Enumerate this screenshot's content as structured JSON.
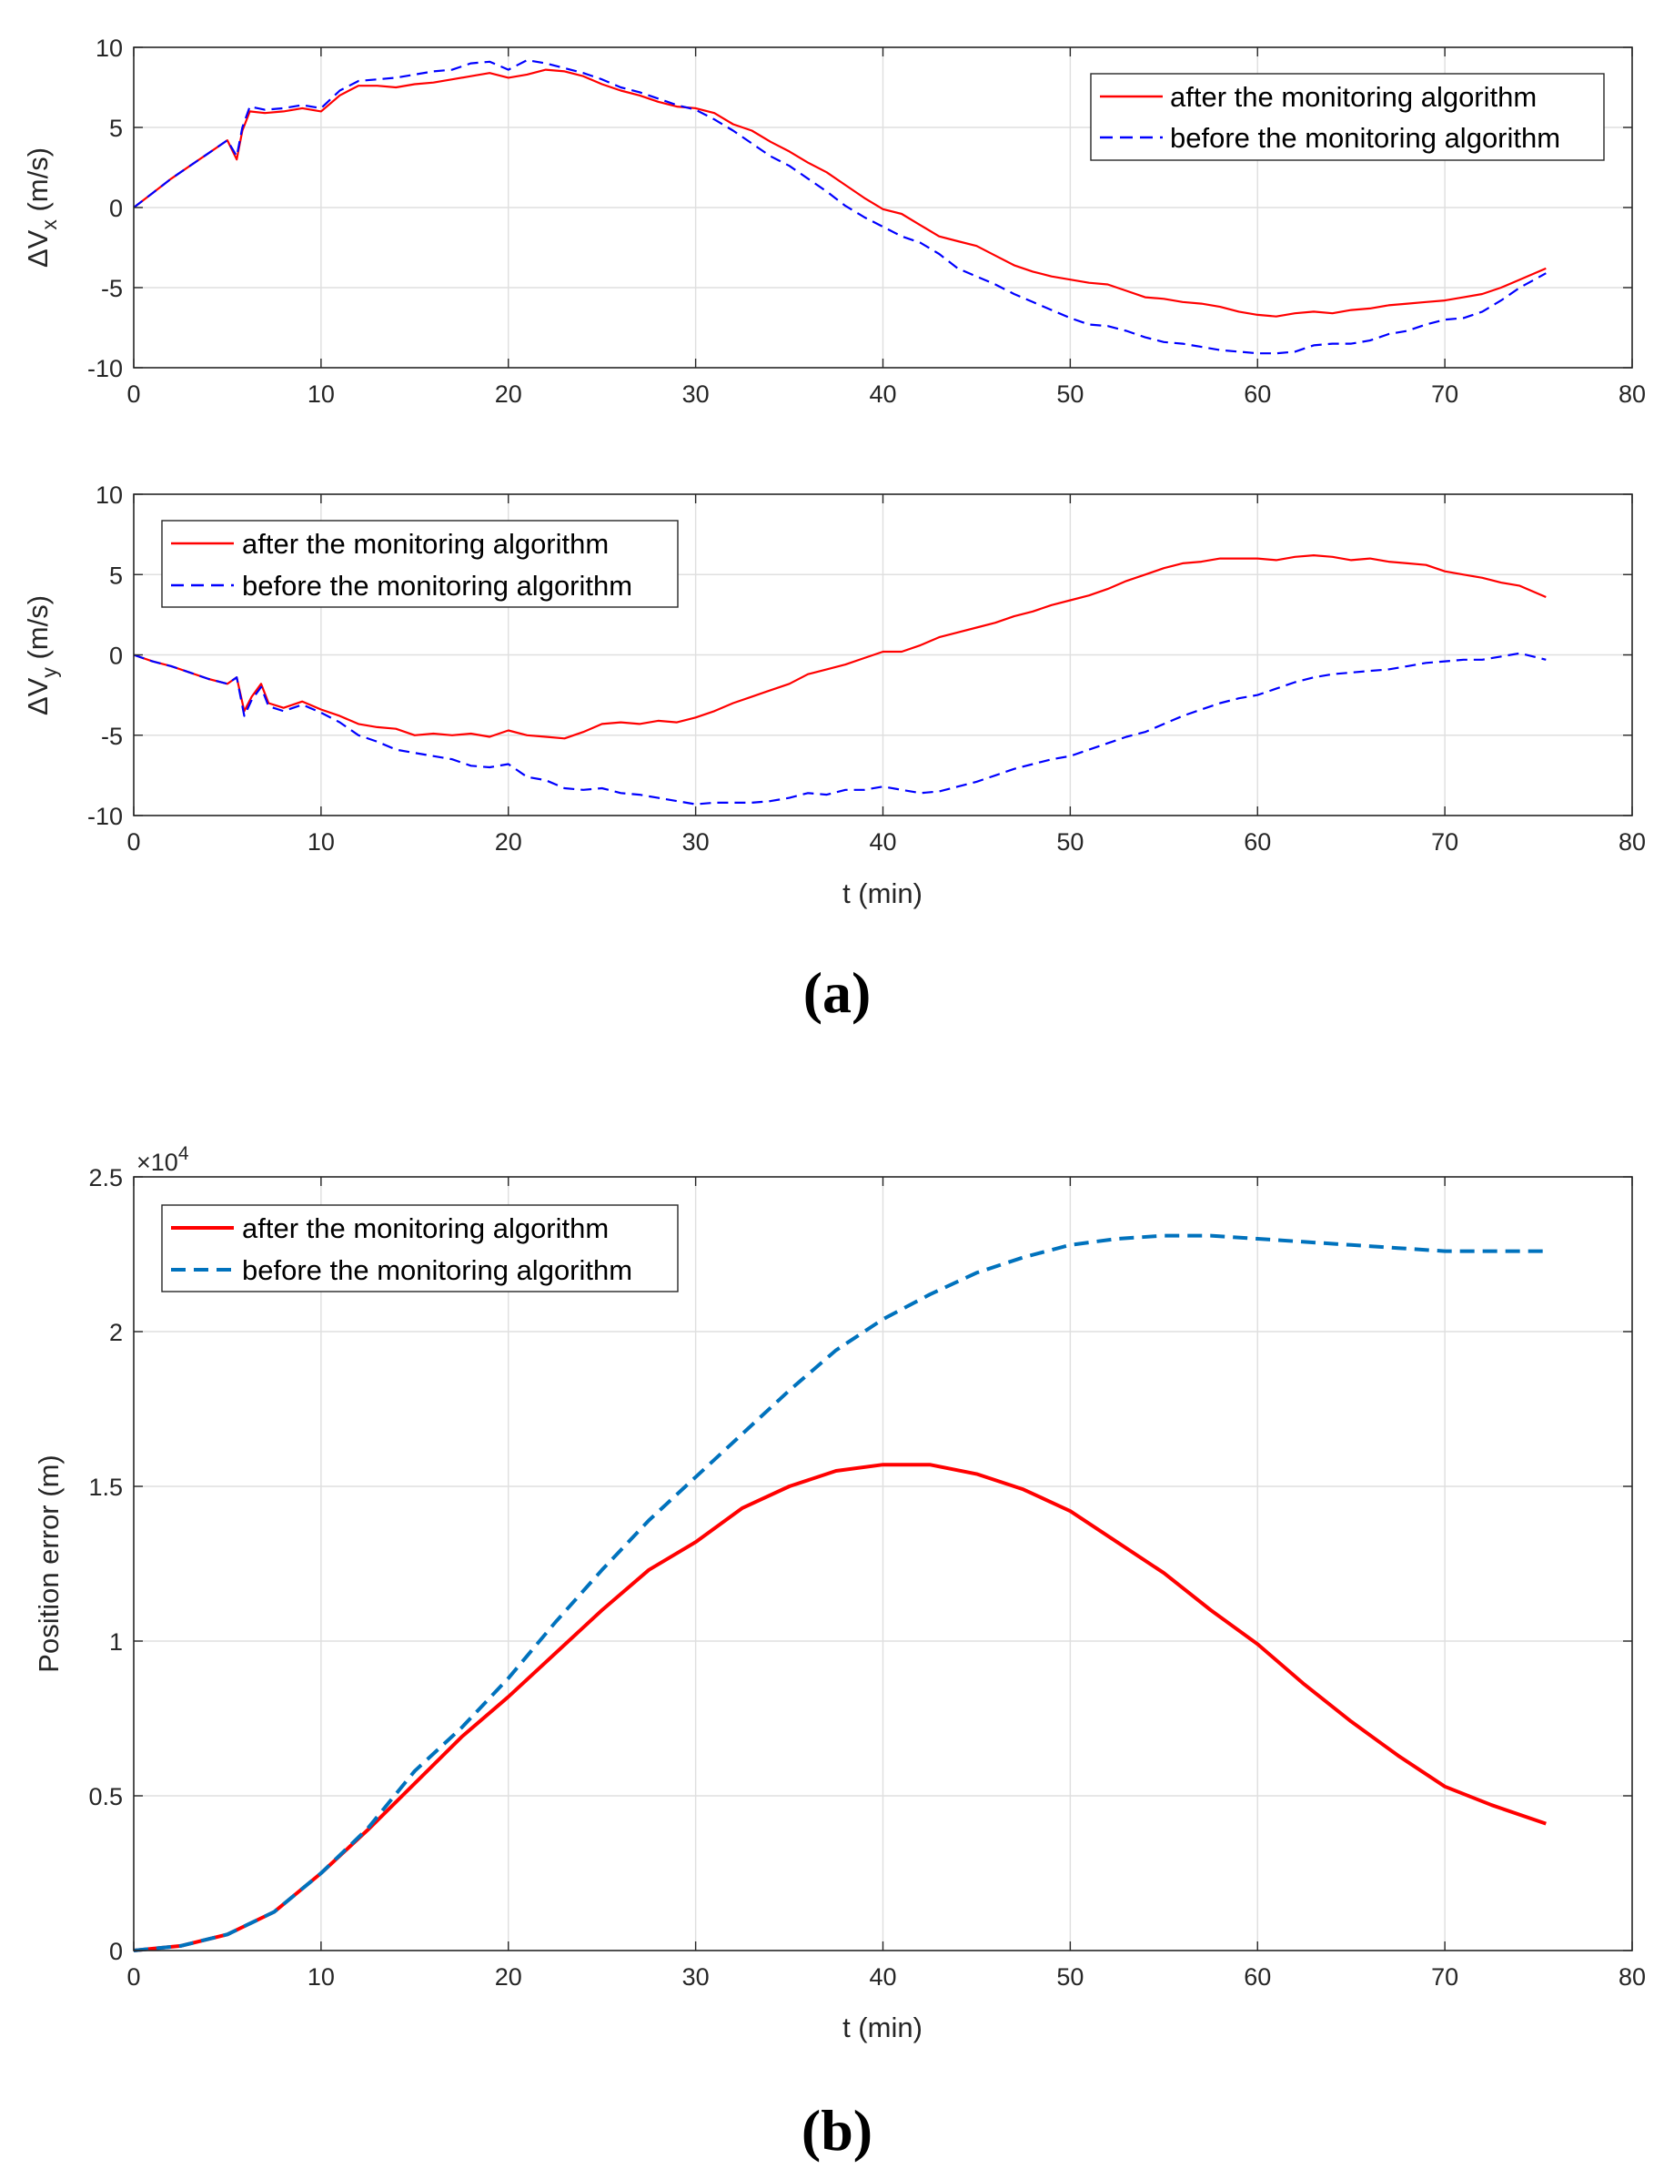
{
  "chart_data": [
    {
      "type": "line",
      "xlabel": "",
      "ylabel": "ΔV",
      "ylabel_subscript": "x",
      "ylabel_unit": " (m/s)",
      "xlim": [
        0,
        80
      ],
      "ylim": [
        -10,
        10
      ],
      "xticks": [
        "0",
        "10",
        "20",
        "30",
        "40",
        "50",
        "60",
        "70",
        "80"
      ],
      "yticks": [
        "-10",
        "-5",
        "0",
        "5",
        "10"
      ],
      "grid": true,
      "legend_position": "top-right",
      "series": [
        {
          "name": "after the monitoring algorithm",
          "color": "#ff0000",
          "style": "solid",
          "x": [
            0,
            1,
            2,
            3,
            4,
            5,
            5.5,
            5.8,
            6.2,
            7,
            8,
            9,
            10,
            11,
            12,
            13,
            14,
            15,
            16,
            17,
            18,
            19,
            20,
            21,
            22,
            23,
            24,
            25,
            26,
            27,
            28,
            29,
            30,
            31,
            32,
            33,
            34,
            35,
            36,
            37,
            38,
            39,
            40,
            41,
            42,
            43,
            44,
            45,
            46,
            47,
            48,
            49,
            50,
            51,
            52,
            53,
            54,
            55,
            56,
            57,
            58,
            59,
            60,
            61,
            62,
            63,
            64,
            65,
            66,
            67,
            68,
            69,
            70,
            71,
            72,
            73,
            74,
            75.4
          ],
          "y": [
            0,
            0.9,
            1.8,
            2.6,
            3.4,
            4.2,
            3.0,
            4.8,
            6.0,
            5.9,
            6.0,
            6.2,
            6.0,
            7.0,
            7.6,
            7.6,
            7.5,
            7.7,
            7.8,
            8.0,
            8.2,
            8.4,
            8.1,
            8.3,
            8.6,
            8.5,
            8.2,
            7.7,
            7.3,
            7.0,
            6.6,
            6.3,
            6.2,
            5.9,
            5.2,
            4.8,
            4.1,
            3.5,
            2.8,
            2.2,
            1.4,
            0.6,
            -0.1,
            -0.4,
            -1.1,
            -1.8,
            -2.1,
            -2.4,
            -3.0,
            -3.6,
            -4.0,
            -4.3,
            -4.5,
            -4.7,
            -4.8,
            -5.2,
            -5.6,
            -5.7,
            -5.9,
            -6.0,
            -6.2,
            -6.5,
            -6.7,
            -6.8,
            -6.6,
            -6.5,
            -6.6,
            -6.4,
            -6.3,
            -6.1,
            -6.0,
            -5.9,
            -5.8,
            -5.6,
            -5.4,
            -5.0,
            -4.5,
            -3.8
          ]
        },
        {
          "name": "before the monitoring algorithm",
          "color": "#0000ff",
          "style": "dashed",
          "x": [
            0,
            1,
            2,
            3,
            4,
            5,
            5.5,
            5.8,
            6.2,
            7,
            8,
            9,
            10,
            11,
            12,
            13,
            14,
            15,
            16,
            17,
            18,
            19,
            20,
            21,
            22,
            23,
            24,
            25,
            26,
            27,
            28,
            29,
            30,
            31,
            32,
            33,
            34,
            35,
            36,
            37,
            38,
            39,
            40,
            41,
            42,
            43,
            44,
            45,
            46,
            47,
            48,
            49,
            50,
            51,
            52,
            53,
            54,
            55,
            56,
            57,
            58,
            59,
            60,
            61,
            62,
            63,
            64,
            65,
            66,
            67,
            68,
            69,
            70,
            71,
            72,
            73,
            74,
            75.4
          ],
          "y": [
            0,
            0.9,
            1.8,
            2.6,
            3.4,
            4.2,
            3.2,
            5.0,
            6.3,
            6.1,
            6.2,
            6.4,
            6.2,
            7.3,
            7.9,
            8.0,
            8.1,
            8.3,
            8.5,
            8.6,
            9.0,
            9.1,
            8.6,
            9.2,
            9.0,
            8.7,
            8.4,
            8.0,
            7.5,
            7.2,
            6.8,
            6.4,
            6.1,
            5.5,
            4.8,
            4.0,
            3.2,
            2.6,
            1.8,
            1.0,
            0.1,
            -0.6,
            -1.2,
            -1.8,
            -2.2,
            -2.9,
            -3.8,
            -4.3,
            -4.8,
            -5.4,
            -5.9,
            -6.4,
            -6.9,
            -7.3,
            -7.4,
            -7.7,
            -8.1,
            -8.4,
            -8.5,
            -8.7,
            -8.9,
            -9.0,
            -9.1,
            -9.1,
            -9.0,
            -8.6,
            -8.5,
            -8.5,
            -8.3,
            -7.9,
            -7.7,
            -7.3,
            -7.0,
            -6.9,
            -6.5,
            -5.8,
            -5.0,
            -4.1
          ]
        }
      ]
    },
    {
      "type": "line",
      "xlabel": "t (min)",
      "ylabel": "ΔV",
      "ylabel_subscript": "y",
      "ylabel_unit": " (m/s)",
      "xlim": [
        0,
        80
      ],
      "ylim": [
        -10,
        10
      ],
      "xticks": [
        "0",
        "10",
        "20",
        "30",
        "40",
        "50",
        "60",
        "70",
        "80"
      ],
      "yticks": [
        "-10",
        "-5",
        "0",
        "5",
        "10"
      ],
      "grid": true,
      "legend_position": "top-left",
      "series": [
        {
          "name": "after the monitoring algorithm",
          "color": "#ff0000",
          "style": "solid",
          "x": [
            0,
            1,
            2,
            3,
            4,
            5,
            5.5,
            5.9,
            6.3,
            6.8,
            7.2,
            8,
            9,
            10,
            11,
            12,
            13,
            14,
            15,
            16,
            17,
            18,
            19,
            20,
            21,
            22,
            23,
            24,
            25,
            26,
            27,
            28,
            29,
            30,
            31,
            32,
            33,
            34,
            35,
            36,
            37,
            38,
            39,
            40,
            41,
            42,
            43,
            44,
            45,
            46,
            47,
            48,
            49,
            50,
            51,
            52,
            53,
            54,
            55,
            56,
            57,
            58,
            59,
            60,
            61,
            62,
            63,
            64,
            65,
            66,
            67,
            68,
            69,
            70,
            71,
            72,
            73,
            74,
            75.4
          ],
          "y": [
            0,
            -0.4,
            -0.7,
            -1.1,
            -1.5,
            -1.8,
            -1.4,
            -3.5,
            -2.6,
            -1.8,
            -3.0,
            -3.3,
            -2.9,
            -3.4,
            -3.8,
            -4.3,
            -4.5,
            -4.6,
            -5.0,
            -4.9,
            -5.0,
            -4.9,
            -5.1,
            -4.7,
            -5.0,
            -5.1,
            -5.2,
            -4.8,
            -4.3,
            -4.2,
            -4.3,
            -4.1,
            -4.2,
            -3.9,
            -3.5,
            -3.0,
            -2.6,
            -2.2,
            -1.8,
            -1.2,
            -0.9,
            -0.6,
            -0.2,
            0.2,
            0.2,
            0.6,
            1.1,
            1.4,
            1.7,
            2.0,
            2.4,
            2.7,
            3.1,
            3.4,
            3.7,
            4.1,
            4.6,
            5.0,
            5.4,
            5.7,
            5.8,
            6.0,
            6.0,
            6.0,
            5.9,
            6.1,
            6.2,
            6.1,
            5.9,
            6.0,
            5.8,
            5.7,
            5.6,
            5.2,
            5.0,
            4.8,
            4.5,
            4.3,
            3.6
          ]
        },
        {
          "name": "before the monitoring algorithm",
          "color": "#0000ff",
          "style": "dashed",
          "x": [
            0,
            1,
            2,
            3,
            4,
            5,
            5.5,
            5.9,
            6.3,
            6.8,
            7.2,
            8,
            9,
            10,
            11,
            12,
            13,
            14,
            15,
            16,
            17,
            18,
            19,
            20,
            21,
            22,
            23,
            24,
            25,
            26,
            27,
            28,
            29,
            30,
            31,
            32,
            33,
            34,
            35,
            36,
            37,
            38,
            39,
            40,
            41,
            42,
            43,
            44,
            45,
            46,
            47,
            48,
            49,
            50,
            51,
            52,
            53,
            54,
            55,
            56,
            57,
            58,
            59,
            60,
            61,
            62,
            63,
            64,
            65,
            66,
            67,
            68,
            69,
            70,
            71,
            72,
            73,
            74,
            75.4
          ],
          "y": [
            0,
            -0.4,
            -0.7,
            -1.1,
            -1.5,
            -1.8,
            -1.4,
            -3.8,
            -2.8,
            -2.0,
            -3.2,
            -3.5,
            -3.1,
            -3.6,
            -4.2,
            -5.0,
            -5.4,
            -5.9,
            -6.1,
            -6.3,
            -6.5,
            -6.9,
            -7.0,
            -6.8,
            -7.6,
            -7.8,
            -8.3,
            -8.4,
            -8.3,
            -8.6,
            -8.7,
            -8.9,
            -9.1,
            -9.3,
            -9.2,
            -9.2,
            -9.2,
            -9.1,
            -8.9,
            -8.6,
            -8.7,
            -8.4,
            -8.4,
            -8.2,
            -8.4,
            -8.6,
            -8.5,
            -8.2,
            -7.9,
            -7.5,
            -7.1,
            -6.8,
            -6.5,
            -6.3,
            -5.9,
            -5.5,
            -5.1,
            -4.8,
            -4.3,
            -3.8,
            -3.4,
            -3.0,
            -2.7,
            -2.5,
            -2.1,
            -1.7,
            -1.4,
            -1.2,
            -1.1,
            -1.0,
            -0.9,
            -0.7,
            -0.5,
            -0.4,
            -0.3,
            -0.3,
            -0.1,
            0.1,
            -0.3
          ]
        }
      ]
    },
    {
      "type": "line",
      "xlabel": "t (min)",
      "ylabel": "Position error (m)",
      "xlim": [
        0,
        80
      ],
      "ylim": [
        0,
        25000
      ],
      "xticks": [
        "0",
        "10",
        "20",
        "30",
        "40",
        "50",
        "60",
        "70",
        "80"
      ],
      "yticks": [
        "0",
        "0.5",
        "1",
        "1.5",
        "2",
        "2.5"
      ],
      "y_exponent_base": "×10",
      "y_exponent_power": "4",
      "grid": true,
      "legend_position": "top-left",
      "series": [
        {
          "name": "after the monitoring algorithm",
          "color": "#ff0000",
          "style": "solid",
          "x": [
            0,
            2.5,
            5,
            7.5,
            10,
            12.5,
            15,
            17.5,
            20,
            22.5,
            25,
            27.5,
            30,
            32.5,
            35,
            37.5,
            40,
            42.5,
            45,
            47.5,
            50,
            52.5,
            55,
            57.5,
            60,
            62.5,
            65,
            67.5,
            70,
            72.5,
            75.4
          ],
          "y": [
            0,
            150,
            520,
            1250,
            2500,
            3900,
            5400,
            6900,
            8200,
            9600,
            11000,
            12300,
            13200,
            14300,
            15000,
            15500,
            15700,
            15700,
            15400,
            14900,
            14200,
            13200,
            12200,
            11000,
            9900,
            8600,
            7400,
            6300,
            5300,
            4700,
            4100
          ]
        },
        {
          "name": "before the monitoring algorithm",
          "color": "#0072bd",
          "style": "dashed",
          "x": [
            0,
            2.5,
            5,
            7.5,
            10,
            12.5,
            15,
            17.5,
            20,
            22.5,
            25,
            27.5,
            30,
            32.5,
            35,
            37.5,
            40,
            42.5,
            45,
            47.5,
            50,
            52.5,
            55,
            57.5,
            60,
            62.5,
            65,
            67.5,
            70,
            72.5,
            75.4
          ],
          "y": [
            0,
            150,
            520,
            1250,
            2500,
            3950,
            5800,
            7200,
            8800,
            10600,
            12300,
            13900,
            15300,
            16700,
            18100,
            19400,
            20400,
            21200,
            21900,
            22400,
            22800,
            23000,
            23100,
            23100,
            23000,
            22900,
            22800,
            22700,
            22600,
            22600,
            22600
          ]
        }
      ]
    }
  ],
  "panel_labels": [
    "(a)",
    "(b)"
  ]
}
